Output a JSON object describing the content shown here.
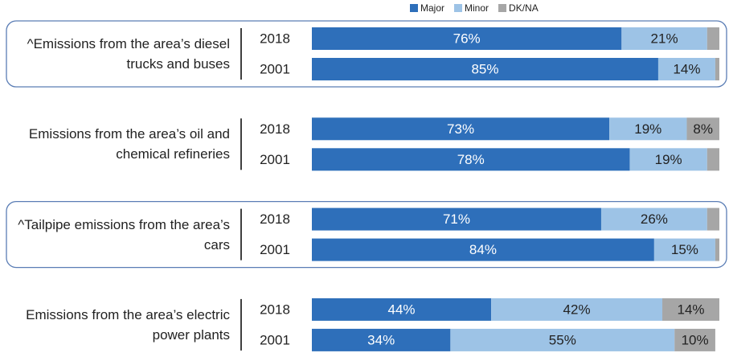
{
  "chart_data": {
    "type": "stacked-bar-horizontal",
    "groups": [
      {
        "label": "^Emissions from the area’s diesel trucks and buses",
        "highlight": true
      },
      {
        "label": "Emissions from the area’s oil and chemical refineries",
        "highlight": false
      },
      {
        "label": "^Tailpipe emissions from the area’s cars",
        "highlight": true
      },
      {
        "label": "Emissions from the area’s electric power plants",
        "highlight": false
      }
    ],
    "categories": [
      "2018",
      "2001",
      "2018",
      "2001",
      "2018",
      "2001",
      "2018",
      "2001"
    ],
    "xlim": [
      0,
      100
    ],
    "legend": "top",
    "series": [
      {
        "name": "Major",
        "color": "#2e6fba",
        "values": [
          76,
          85,
          73,
          78,
          71,
          84,
          44,
          34
        ],
        "value_labels": [
          "76%",
          "85%",
          "73%",
          "78%",
          "71%",
          "84%",
          "44%",
          "34%"
        ]
      },
      {
        "name": "Minor",
        "color": "#9dc3e6",
        "values": [
          21,
          14,
          19,
          19,
          26,
          15,
          42,
          55
        ],
        "value_labels": [
          "21%",
          "14%",
          "19%",
          "19%",
          "26%",
          "15%",
          "42%",
          "55%"
        ]
      },
      {
        "name": "DK/NA",
        "color": "#a6a6a6",
        "values": [
          3,
          1,
          8,
          3,
          3,
          1,
          14,
          10
        ],
        "value_labels": [
          null,
          null,
          "8%",
          null,
          null,
          null,
          "14%",
          "10%"
        ]
      }
    ]
  }
}
